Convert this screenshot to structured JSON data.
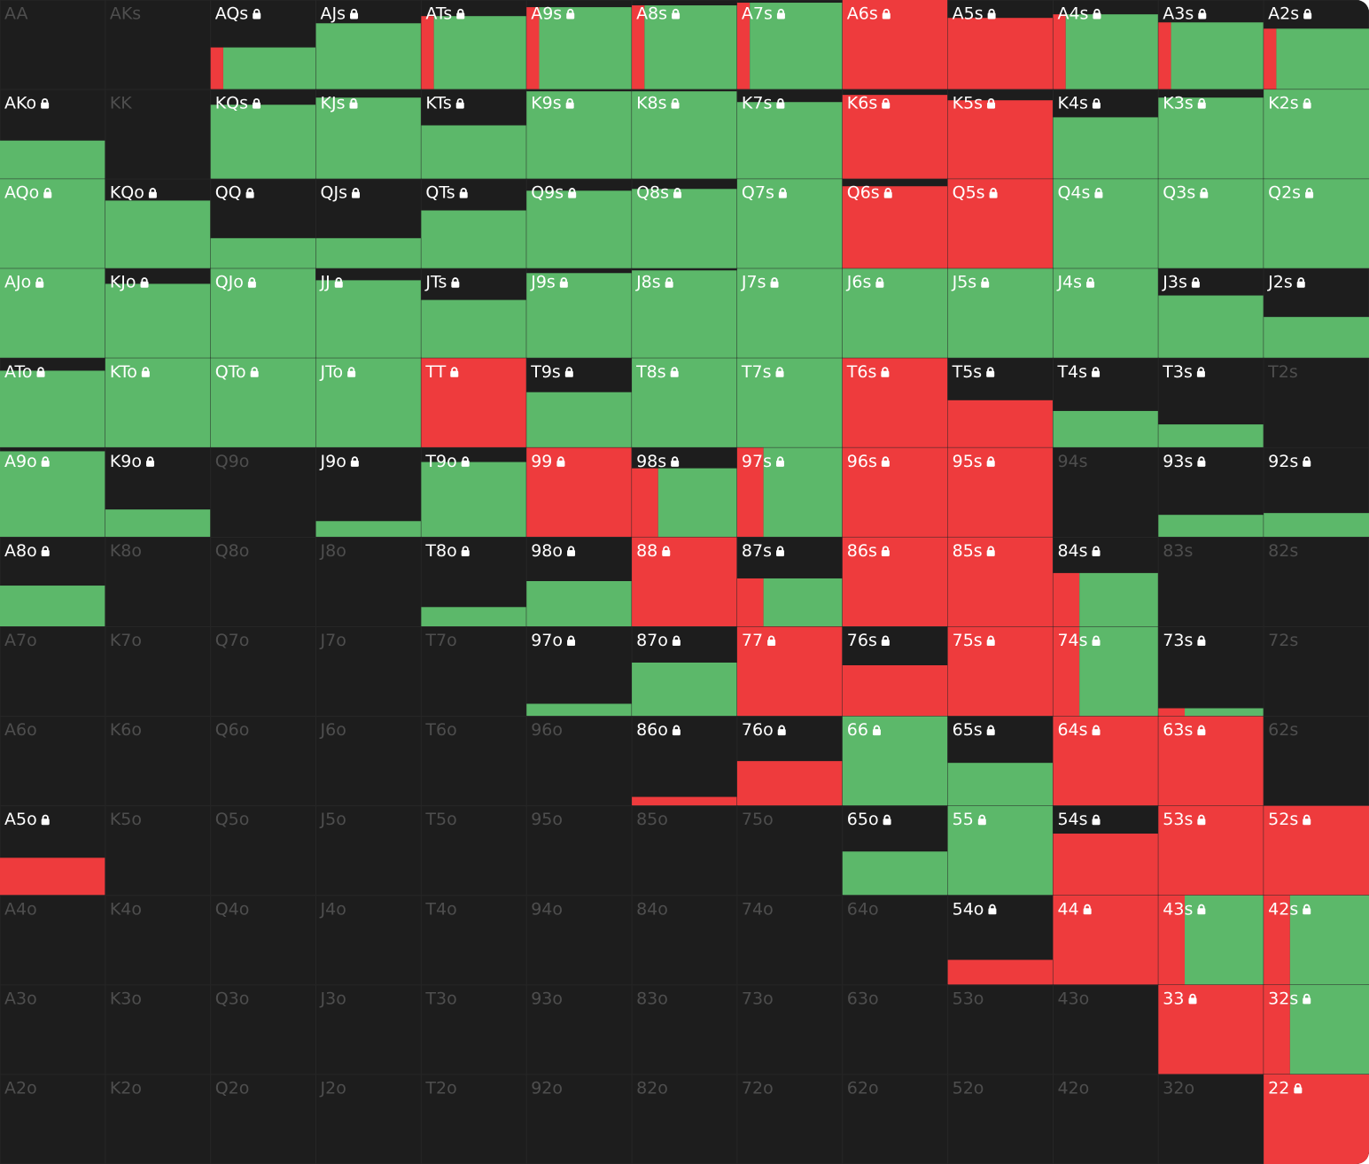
{
  "grid": {
    "rows": [
      [
        {
          "label": "AA",
          "locked": false
        },
        {
          "label": "AKs",
          "locked": false
        },
        {
          "label": "AQs",
          "locked": true,
          "freq": 47,
          "red": 12
        },
        {
          "label": "AJs",
          "locked": true,
          "freq": 74,
          "red": 0
        },
        {
          "label": "ATs",
          "locked": true,
          "freq": 82,
          "red": 12
        },
        {
          "label": "A9s",
          "locked": true,
          "freq": 92,
          "red": 12
        },
        {
          "label": "A8s",
          "locked": true,
          "freq": 94,
          "red": 12
        },
        {
          "label": "A7s",
          "locked": true,
          "freq": 97,
          "red": 12
        },
        {
          "label": "A6s",
          "locked": true,
          "freq": 100,
          "red": 100
        },
        {
          "label": "A5s",
          "locked": true,
          "freq": 80,
          "red": 100
        },
        {
          "label": "A4s",
          "locked": true,
          "freq": 84,
          "red": 12
        },
        {
          "label": "A3s",
          "locked": true,
          "freq": 75,
          "red": 12
        },
        {
          "label": "A2s",
          "locked": true,
          "freq": 68,
          "red": 12
        }
      ],
      [
        {
          "label": "AKo",
          "locked": true,
          "freq": 43,
          "red": 0
        },
        {
          "label": "KK",
          "locked": false
        },
        {
          "label": "KQs",
          "locked": true,
          "freq": 83,
          "red": 0
        },
        {
          "label": "KJs",
          "locked": true,
          "freq": 91,
          "red": 0
        },
        {
          "label": "KTs",
          "locked": true,
          "freq": 60,
          "red": 0
        },
        {
          "label": "K9s",
          "locked": true,
          "freq": 98,
          "red": 0
        },
        {
          "label": "K8s",
          "locked": true,
          "freq": 98,
          "red": 0
        },
        {
          "label": "K7s",
          "locked": true,
          "freq": 86,
          "red": 0
        },
        {
          "label": "K6s",
          "locked": true,
          "freq": 94,
          "red": 100
        },
        {
          "label": "K5s",
          "locked": true,
          "freq": 88,
          "red": 100
        },
        {
          "label": "K4s",
          "locked": true,
          "freq": 69,
          "red": 0
        },
        {
          "label": "K3s",
          "locked": true,
          "freq": 91,
          "red": 0
        },
        {
          "label": "K2s",
          "locked": true,
          "freq": 100,
          "red": 0
        }
      ],
      [
        {
          "label": "AQo",
          "locked": true,
          "freq": 100,
          "red": 0
        },
        {
          "label": "KQo",
          "locked": true,
          "freq": 76,
          "red": 0
        },
        {
          "label": "QQ",
          "locked": true,
          "freq": 34,
          "red": 0
        },
        {
          "label": "QJs",
          "locked": true,
          "freq": 34,
          "red": 0
        },
        {
          "label": "QTs",
          "locked": true,
          "freq": 65,
          "red": 0
        },
        {
          "label": "Q9s",
          "locked": true,
          "freq": 87,
          "red": 0
        },
        {
          "label": "Q8s",
          "locked": true,
          "freq": 89,
          "red": 0
        },
        {
          "label": "Q7s",
          "locked": true,
          "freq": 100,
          "red": 0
        },
        {
          "label": "Q6s",
          "locked": true,
          "freq": 92,
          "red": 100
        },
        {
          "label": "Q5s",
          "locked": true,
          "freq": 100,
          "red": 100
        },
        {
          "label": "Q4s",
          "locked": true,
          "freq": 100,
          "red": 0
        },
        {
          "label": "Q3s",
          "locked": true,
          "freq": 100,
          "red": 0
        },
        {
          "label": "Q2s",
          "locked": true,
          "freq": 100,
          "red": 0
        }
      ],
      [
        {
          "label": "AJo",
          "locked": true,
          "freq": 100,
          "red": 0
        },
        {
          "label": "KJo",
          "locked": true,
          "freq": 83,
          "red": 0
        },
        {
          "label": "QJo",
          "locked": true,
          "freq": 100,
          "red": 0
        },
        {
          "label": "JJ",
          "locked": true,
          "freq": 87,
          "red": 0
        },
        {
          "label": "JTs",
          "locked": true,
          "freq": 65,
          "red": 0
        },
        {
          "label": "J9s",
          "locked": true,
          "freq": 95,
          "red": 0
        },
        {
          "label": "J8s",
          "locked": true,
          "freq": 98,
          "red": 0
        },
        {
          "label": "J7s",
          "locked": true,
          "freq": 100,
          "red": 0
        },
        {
          "label": "J6s",
          "locked": true,
          "freq": 100,
          "red": 0
        },
        {
          "label": "J5s",
          "locked": true,
          "freq": 100,
          "red": 0
        },
        {
          "label": "J4s",
          "locked": true,
          "freq": 100,
          "red": 0
        },
        {
          "label": "J3s",
          "locked": true,
          "freq": 70,
          "red": 0
        },
        {
          "label": "J2s",
          "locked": true,
          "freq": 46,
          "red": 0
        }
      ],
      [
        {
          "label": "ATo",
          "locked": true,
          "freq": 86,
          "red": 0
        },
        {
          "label": "KTo",
          "locked": true,
          "freq": 100,
          "red": 0
        },
        {
          "label": "QTo",
          "locked": true,
          "freq": 100,
          "red": 0
        },
        {
          "label": "JTo",
          "locked": true,
          "freq": 100,
          "red": 0
        },
        {
          "label": "TT",
          "locked": true,
          "freq": 100,
          "red": 100
        },
        {
          "label": "T9s",
          "locked": true,
          "freq": 62,
          "red": 0
        },
        {
          "label": "T8s",
          "locked": true,
          "freq": 100,
          "red": 0
        },
        {
          "label": "T7s",
          "locked": true,
          "freq": 100,
          "red": 0
        },
        {
          "label": "T6s",
          "locked": true,
          "freq": 100,
          "red": 100
        },
        {
          "label": "T5s",
          "locked": true,
          "freq": 53,
          "red": 100
        },
        {
          "label": "T4s",
          "locked": true,
          "freq": 41,
          "red": 0
        },
        {
          "label": "T3s",
          "locked": true,
          "freq": 26,
          "red": 0
        },
        {
          "label": "T2s",
          "locked": false
        }
      ],
      [
        {
          "label": "A9o",
          "locked": true,
          "freq": 96,
          "red": 0
        },
        {
          "label": "K9o",
          "locked": true,
          "freq": 31,
          "red": 0
        },
        {
          "label": "Q9o",
          "locked": false
        },
        {
          "label": "J9o",
          "locked": true,
          "freq": 18,
          "red": 0
        },
        {
          "label": "T9o",
          "locked": true,
          "freq": 84,
          "red": 0
        },
        {
          "label": "99",
          "locked": true,
          "freq": 100,
          "red": 100
        },
        {
          "label": "98s",
          "locked": true,
          "freq": 77,
          "red": 25
        },
        {
          "label": "97s",
          "locked": true,
          "freq": 100,
          "red": 25
        },
        {
          "label": "96s",
          "locked": true,
          "freq": 100,
          "red": 100
        },
        {
          "label": "95s",
          "locked": true,
          "freq": 100,
          "red": 100
        },
        {
          "label": "94s",
          "locked": false
        },
        {
          "label": "93s",
          "locked": true,
          "freq": 25,
          "red": 0
        },
        {
          "label": "92s",
          "locked": true,
          "freq": 27,
          "red": 0
        }
      ],
      [
        {
          "label": "A8o",
          "locked": true,
          "freq": 46,
          "red": 0
        },
        {
          "label": "K8o",
          "locked": false
        },
        {
          "label": "Q8o",
          "locked": false
        },
        {
          "label": "J8o",
          "locked": false
        },
        {
          "label": "T8o",
          "locked": true,
          "freq": 22,
          "red": 0
        },
        {
          "label": "98o",
          "locked": true,
          "freq": 51,
          "red": 0
        },
        {
          "label": "88",
          "locked": true,
          "freq": 100,
          "red": 100
        },
        {
          "label": "87s",
          "locked": true,
          "freq": 54,
          "red": 25
        },
        {
          "label": "86s",
          "locked": true,
          "freq": 100,
          "red": 100
        },
        {
          "label": "85s",
          "locked": true,
          "freq": 100,
          "red": 100
        },
        {
          "label": "84s",
          "locked": true,
          "freq": 60,
          "red": 25
        },
        {
          "label": "83s",
          "locked": false
        },
        {
          "label": "82s",
          "locked": false
        }
      ],
      [
        {
          "label": "A7o",
          "locked": false
        },
        {
          "label": "K7o",
          "locked": false
        },
        {
          "label": "Q7o",
          "locked": false
        },
        {
          "label": "J7o",
          "locked": false
        },
        {
          "label": "T7o",
          "locked": false
        },
        {
          "label": "97o",
          "locked": true,
          "freq": 14,
          "red": 0
        },
        {
          "label": "87o",
          "locked": true,
          "freq": 60,
          "red": 0
        },
        {
          "label": "77",
          "locked": true,
          "freq": 100,
          "red": 100
        },
        {
          "label": "76s",
          "locked": true,
          "freq": 57,
          "red": 100
        },
        {
          "label": "75s",
          "locked": true,
          "freq": 100,
          "red": 100
        },
        {
          "label": "74s",
          "locked": true,
          "freq": 100,
          "red": 25
        },
        {
          "label": "73s",
          "locked": true,
          "freq": 9,
          "red": 25
        },
        {
          "label": "72s",
          "locked": false
        }
      ],
      [
        {
          "label": "A6o",
          "locked": false
        },
        {
          "label": "K6o",
          "locked": false
        },
        {
          "label": "Q6o",
          "locked": false
        },
        {
          "label": "J6o",
          "locked": false
        },
        {
          "label": "T6o",
          "locked": false
        },
        {
          "label": "96o",
          "locked": false
        },
        {
          "label": "86o",
          "locked": true,
          "freq": 10,
          "red": 100
        },
        {
          "label": "76o",
          "locked": true,
          "freq": 50,
          "red": 100
        },
        {
          "label": "66",
          "locked": true,
          "freq": 100,
          "red": 0
        },
        {
          "label": "65s",
          "locked": true,
          "freq": 48,
          "red": 0
        },
        {
          "label": "64s",
          "locked": true,
          "freq": 100,
          "red": 100
        },
        {
          "label": "63s",
          "locked": true,
          "freq": 100,
          "red": 100
        },
        {
          "label": "62s",
          "locked": false
        }
      ],
      [
        {
          "label": "A5o",
          "locked": true,
          "freq": 42,
          "red": 100
        },
        {
          "label": "K5o",
          "locked": false
        },
        {
          "label": "Q5o",
          "locked": false
        },
        {
          "label": "J5o",
          "locked": false
        },
        {
          "label": "T5o",
          "locked": false
        },
        {
          "label": "95o",
          "locked": false
        },
        {
          "label": "85o",
          "locked": false
        },
        {
          "label": "75o",
          "locked": false
        },
        {
          "label": "65o",
          "locked": true,
          "freq": 49,
          "red": 0
        },
        {
          "label": "55",
          "locked": true,
          "freq": 100,
          "red": 0
        },
        {
          "label": "54s",
          "locked": true,
          "freq": 69,
          "red": 100
        },
        {
          "label": "53s",
          "locked": true,
          "freq": 100,
          "red": 100
        },
        {
          "label": "52s",
          "locked": true,
          "freq": 100,
          "red": 100
        }
      ],
      [
        {
          "label": "A4o",
          "locked": false
        },
        {
          "label": "K4o",
          "locked": false
        },
        {
          "label": "Q4o",
          "locked": false
        },
        {
          "label": "J4o",
          "locked": false
        },
        {
          "label": "T4o",
          "locked": false
        },
        {
          "label": "94o",
          "locked": false
        },
        {
          "label": "84o",
          "locked": false
        },
        {
          "label": "74o",
          "locked": false
        },
        {
          "label": "64o",
          "locked": false
        },
        {
          "label": "54o",
          "locked": true,
          "freq": 28,
          "red": 100
        },
        {
          "label": "44",
          "locked": true,
          "freq": 100,
          "red": 100
        },
        {
          "label": "43s",
          "locked": true,
          "freq": 100,
          "red": 25
        },
        {
          "label": "42s",
          "locked": true,
          "freq": 100,
          "red": 25
        }
      ],
      [
        {
          "label": "A3o",
          "locked": false
        },
        {
          "label": "K3o",
          "locked": false
        },
        {
          "label": "Q3o",
          "locked": false
        },
        {
          "label": "J3o",
          "locked": false
        },
        {
          "label": "T3o",
          "locked": false
        },
        {
          "label": "93o",
          "locked": false
        },
        {
          "label": "83o",
          "locked": false
        },
        {
          "label": "73o",
          "locked": false
        },
        {
          "label": "63o",
          "locked": false
        },
        {
          "label": "53o",
          "locked": false
        },
        {
          "label": "43o",
          "locked": false
        },
        {
          "label": "33",
          "locked": true,
          "freq": 100,
          "red": 100
        },
        {
          "label": "32s",
          "locked": true,
          "freq": 100,
          "red": 25
        }
      ],
      [
        {
          "label": "A2o",
          "locked": false
        },
        {
          "label": "K2o",
          "locked": false
        },
        {
          "label": "Q2o",
          "locked": false
        },
        {
          "label": "J2o",
          "locked": false
        },
        {
          "label": "T2o",
          "locked": false
        },
        {
          "label": "92o",
          "locked": false
        },
        {
          "label": "82o",
          "locked": false
        },
        {
          "label": "72o",
          "locked": false
        },
        {
          "label": "62o",
          "locked": false
        },
        {
          "label": "52o",
          "locked": false
        },
        {
          "label": "42o",
          "locked": false
        },
        {
          "label": "32o",
          "locked": false
        },
        {
          "label": "22",
          "locked": true,
          "freq": 100,
          "red": 100
        }
      ]
    ]
  }
}
